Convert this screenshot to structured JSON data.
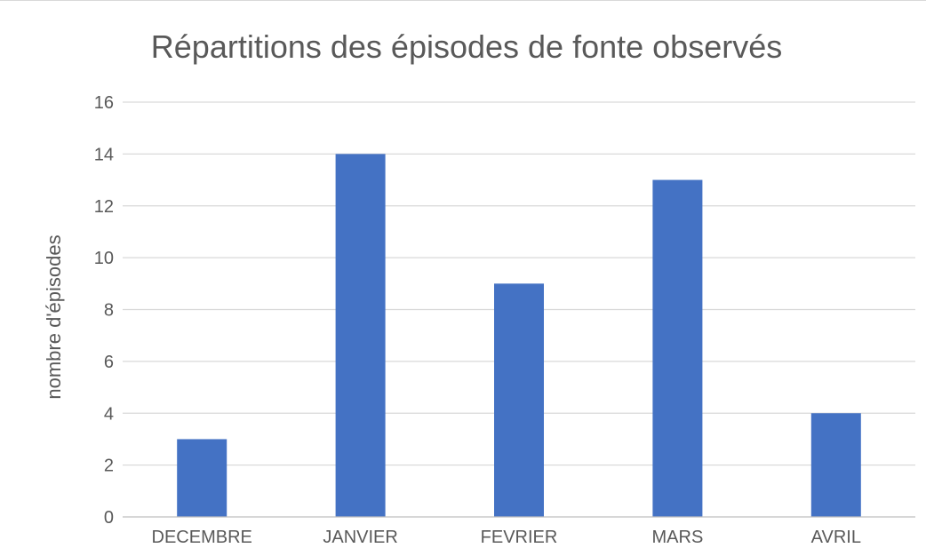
{
  "chart_data": {
    "type": "bar",
    "title": "Répartitions des épisodes de fonte observés",
    "xlabel": "",
    "ylabel": "nombre d'épisodes",
    "categories": [
      "DECEMBRE",
      "JANVIER",
      "FEVRIER",
      "MARS",
      "AVRIL"
    ],
    "values": [
      3,
      14,
      9,
      13,
      4
    ],
    "ylim": [
      0,
      16
    ],
    "yticks": [
      0,
      2,
      4,
      6,
      8,
      10,
      12,
      14,
      16
    ],
    "grid": true,
    "legend": "none",
    "bar_color": "#4472C4"
  }
}
